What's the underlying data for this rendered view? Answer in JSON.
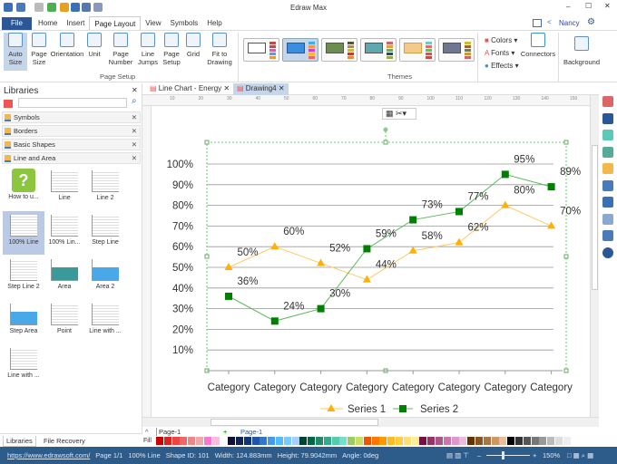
{
  "app": {
    "title": "Edraw Max",
    "user": "Nancy"
  },
  "menu": {
    "file": "File",
    "tabs": [
      "Home",
      "Insert",
      "Page Layout",
      "View",
      "Symbols",
      "Help"
    ],
    "active": "Page Layout"
  },
  "ribbon": {
    "page_setup": {
      "label": "Page Setup",
      "buttons": [
        "Auto Size",
        "Page Size",
        "Orientation",
        "Unit",
        "Page Number",
        "Line Jumps",
        "Page Setup",
        "Grid",
        "Fit to Drawing"
      ]
    },
    "themes": {
      "label": "Themes"
    },
    "style": {
      "colors": "Colors",
      "fonts": "Fonts",
      "effects": "Effects",
      "connectors": "Connectors"
    },
    "background": "Background"
  },
  "libraries": {
    "title": "Libraries",
    "search_placeholder": "",
    "categories": [
      "Symbols",
      "Borders",
      "Basic Shapes",
      "Line and Area"
    ],
    "shapes": [
      "How to u...",
      "Line",
      "Line 2",
      "100% Line",
      "100% Lin...",
      "Step Line",
      "Step Line 2",
      "Area",
      "Area 2",
      "Step Area",
      "Point",
      "Line with ...",
      "Line with ..."
    ],
    "selected": "100% Line",
    "bottom_tabs": [
      "Libraries",
      "File Recovery"
    ]
  },
  "documents": {
    "tabs": [
      "Line Chart - Energy",
      "Drawing4"
    ],
    "active": "Drawing4"
  },
  "ruler": [
    "10",
    "20",
    "30",
    "40",
    "50",
    "60",
    "70",
    "80",
    "90",
    "100",
    "110",
    "120",
    "130",
    "140",
    "150"
  ],
  "pages": {
    "selector": "Page-1",
    "tabs": [
      "Page-1"
    ]
  },
  "fill_label": "Fill",
  "status": {
    "url": "https://www.edrawsoft.com/",
    "page": "Page 1/1",
    "shape": "100% Line",
    "shape_id": "Shape ID: 101",
    "width": "Width: 124.883mm",
    "height": "Height: 79.9042mm",
    "angle": "Angle: 0deg",
    "zoom": "150%"
  },
  "colors": {
    "accent": "#2b5797",
    "status_bar": "#2d5b8a",
    "series1": "#ffb000",
    "series2": "#008000"
  },
  "chart_data": {
    "type": "line",
    "categories": [
      "Category",
      "Category",
      "Category",
      "Category",
      "Category",
      "Category",
      "Category",
      "Category"
    ],
    "series": [
      {
        "name": "Series 1",
        "values": [
          50,
          60,
          52,
          44,
          58,
          62,
          80,
          70
        ],
        "color": "#ffb000",
        "marker": "triangle"
      },
      {
        "name": "Series 2",
        "values": [
          36,
          24,
          30,
          59,
          73,
          77,
          95,
          89
        ],
        "color": "#008000",
        "marker": "square"
      }
    ],
    "yticks": [
      "10%",
      "20%",
      "30%",
      "40%",
      "50%",
      "60%",
      "70%",
      "80%",
      "90%",
      "100%"
    ],
    "ylim": [
      0,
      100
    ],
    "grid": true,
    "legend": "bottom",
    "data_labels": true
  }
}
